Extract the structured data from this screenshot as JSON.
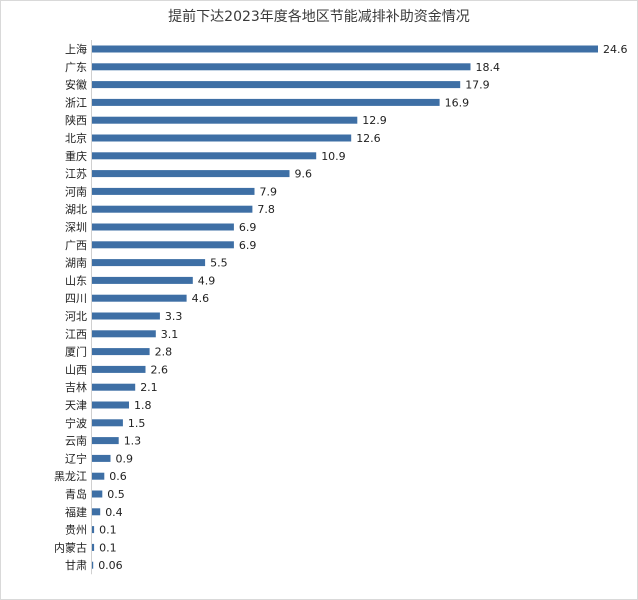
{
  "chart_data": {
    "type": "bar",
    "orientation": "horizontal",
    "title": "提前下达2023年度各地区节能减排补助资金情况",
    "xlabel": "",
    "ylabel": "",
    "xlim": [
      0,
      24.6
    ],
    "grid": false,
    "legend": "none",
    "bar_color": "#3e6fa5",
    "categories": [
      "上海",
      "广东",
      "安徽",
      "浙江",
      "陕西",
      "北京",
      "重庆",
      "江苏",
      "河南",
      "湖北",
      "深圳",
      "广西",
      "湖南",
      "山东",
      "四川",
      "河北",
      "江西",
      "厦门",
      "山西",
      "吉林",
      "天津",
      "宁波",
      "云南",
      "辽宁",
      "黑龙江",
      "青岛",
      "福建",
      "贵州",
      "内蒙古",
      "甘肃"
    ],
    "values": [
      24.6,
      18.4,
      17.9,
      16.9,
      12.9,
      12.6,
      10.9,
      9.6,
      7.9,
      7.8,
      6.9,
      6.9,
      5.5,
      4.9,
      4.6,
      3.3,
      3.1,
      2.8,
      2.6,
      2.1,
      1.8,
      1.5,
      1.3,
      0.9,
      0.6,
      0.5,
      0.4,
      0.1,
      0.1,
      0.06
    ],
    "labels": [
      "24.6",
      "18.4",
      "17.9",
      "16.9",
      "12.9",
      "12.6",
      "10.9",
      "9.6",
      "7.9",
      "7.8",
      "6.9",
      "6.9",
      "5.5",
      "4.9",
      "4.6",
      "3.3",
      "3.1",
      "2.8",
      "2.6",
      "2.1",
      "1.8",
      "1.5",
      "1.3",
      "0.9",
      "0.6",
      "0.5",
      "0.4",
      "0.1",
      "0.1",
      "0.06"
    ]
  }
}
